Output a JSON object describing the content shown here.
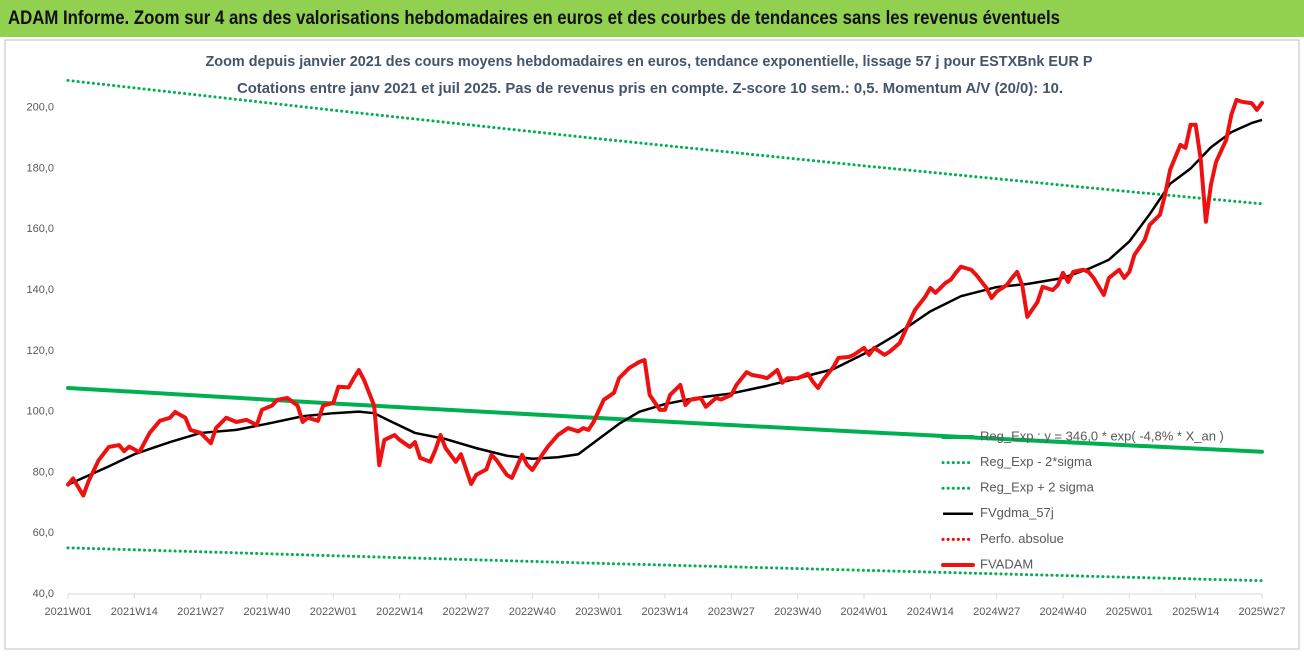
{
  "chart_data": {
    "type": "line",
    "header": "ADAM Informe. Zoom sur 4 ans des valorisations hebdomadaires en euros et des courbes de tendances sans les revenus éventuels",
    "title": "Zoom depuis janvier 2021 des cours moyens hebdomadaires en euros, tendance exponentielle, lissage 57 j pour ESTXBnk EUR P",
    "subtitle": "Cotations entre janv 2021 et juil 2025. Pas de revenus pris en compte. Z-score 10 sem.: 0,5. Momentum A/V (20/0): 10.",
    "xlim": [
      0,
      234
    ],
    "xticks": [
      {
        "value": 0,
        "label": "2021W01"
      },
      {
        "value": 13,
        "label": "2021W14"
      },
      {
        "value": 26,
        "label": "2021W27"
      },
      {
        "value": 39,
        "label": "2021W40"
      },
      {
        "value": 52,
        "label": "2022W01"
      },
      {
        "value": 65,
        "label": "2022W14"
      },
      {
        "value": 78,
        "label": "2022W27"
      },
      {
        "value": 91,
        "label": "2022W40"
      },
      {
        "value": 104,
        "label": "2023W01"
      },
      {
        "value": 117,
        "label": "2023W14"
      },
      {
        "value": 130,
        "label": "2023W27"
      },
      {
        "value": 143,
        "label": "2023W40"
      },
      {
        "value": 156,
        "label": "2024W01"
      },
      {
        "value": 169,
        "label": "2024W14"
      },
      {
        "value": 182,
        "label": "2024W27"
      },
      {
        "value": 195,
        "label": "2024W40"
      },
      {
        "value": 208,
        "label": "2025W01"
      },
      {
        "value": 221,
        "label": "2025W14"
      },
      {
        "value": 234,
        "label": "2025W27"
      }
    ],
    "ylim": [
      40,
      220
    ],
    "yticks": [
      {
        "value": 40,
        "label": "40,0"
      },
      {
        "value": 60,
        "label": "60,0"
      },
      {
        "value": 80,
        "label": "80,0"
      },
      {
        "value": 100,
        "label": "100,0"
      },
      {
        "value": 120,
        "label": "120,0"
      },
      {
        "value": 140,
        "label": "140,0"
      },
      {
        "value": 160,
        "label": "160,0"
      },
      {
        "value": 180,
        "label": "180,0"
      },
      {
        "value": 200,
        "label": "200,0"
      }
    ],
    "grid": false,
    "series": [
      {
        "name": "Reg_Exp : y = 346,0 * exp( -4,8% * X_an )",
        "color": "#00b050",
        "style": "thick",
        "x": [
          0,
          52,
          104,
          156,
          208,
          234
        ],
        "values": [
          107.8,
          102.7,
          97.9,
          93.3,
          88.9,
          86.8
        ]
      },
      {
        "name": "Reg_Exp - 2*sigma",
        "color": "#00b050",
        "style": "dotted",
        "x": [
          0,
          52,
          104,
          156,
          208,
          234
        ],
        "values": [
          55.2,
          52.6,
          50.1,
          47.8,
          45.5,
          44.4
        ]
      },
      {
        "name": "Reg_Exp + 2 sigma",
        "color": "#00b050",
        "style": "dotted",
        "x": [
          0,
          52,
          104,
          156,
          208,
          234
        ],
        "values": [
          209,
          199.2,
          189.8,
          180.9,
          172.4,
          168.4
        ]
      },
      {
        "name": "FVgdma_57j",
        "color": "#000000",
        "style": "solid",
        "x": [
          0,
          8,
          13,
          20,
          26,
          33,
          39,
          46,
          52,
          57,
          60,
          63,
          68,
          74,
          80,
          86,
          91,
          96,
          100,
          104,
          108,
          112,
          117,
          123,
          130,
          137,
          143,
          150,
          156,
          162,
          169,
          175,
          182,
          188,
          195,
          200,
          204,
          208,
          212,
          216,
          220,
          224,
          228,
          232,
          234
        ],
        "values": [
          76,
          82,
          86,
          90,
          93,
          94,
          96,
          98.5,
          99.5,
          100,
          99.5,
          97,
          93,
          91,
          88,
          85.5,
          84.5,
          85,
          86,
          91,
          96,
          100,
          102.5,
          104.5,
          106,
          108.5,
          111,
          114,
          119,
          125,
          133,
          138,
          141,
          142,
          144,
          147,
          150,
          156,
          165,
          175,
          180,
          187,
          192,
          195,
          196
        ]
      },
      {
        "name": "Perfo. absolue",
        "color": "#ff0000",
        "style": "dotted",
        "x": [],
        "values": []
      },
      {
        "name": "FVADAM",
        "color": "#ee1111",
        "style": "thick",
        "x": [
          0,
          1,
          3,
          4,
          6,
          8,
          10,
          11,
          12,
          14,
          16,
          18,
          20,
          21,
          23,
          24,
          26,
          28,
          29,
          31,
          33,
          35,
          37,
          38,
          40,
          41,
          43,
          45,
          46,
          47,
          49,
          50,
          52,
          53,
          55,
          56,
          57,
          58,
          60,
          61,
          62,
          64,
          65,
          67,
          68,
          69,
          71,
          72,
          73,
          74,
          76,
          77,
          79,
          80,
          82,
          83,
          84,
          86,
          87,
          89,
          90,
          91,
          93,
          94,
          96,
          98,
          100,
          101,
          102,
          103,
          105,
          107,
          108,
          110,
          112,
          113,
          114,
          116,
          117,
          118,
          120,
          121,
          122,
          124,
          125,
          127,
          128,
          130,
          131,
          133,
          134,
          136,
          137,
          139,
          140,
          141,
          143,
          145,
          146,
          147,
          148,
          150,
          151,
          153,
          154,
          156,
          157,
          158,
          160,
          161,
          163,
          164,
          166,
          168,
          169,
          170,
          172,
          173,
          174,
          175,
          177,
          178,
          180,
          181,
          182,
          184,
          185,
          186,
          187,
          188,
          190,
          191,
          193,
          194,
          195,
          196,
          197,
          199,
          200,
          201,
          203,
          204,
          206,
          207,
          208,
          209,
          211,
          212,
          214,
          215,
          216,
          218,
          219,
          220,
          221,
          222,
          223,
          224,
          225,
          227,
          228,
          229,
          230,
          232,
          233,
          234
        ],
        "values": [
          76,
          78,
          72.4,
          77,
          84,
          88.4,
          89,
          87,
          88.5,
          86.7,
          93,
          97,
          98,
          99.9,
          98,
          94,
          93,
          89.6,
          94.6,
          98,
          96.6,
          97.3,
          95.6,
          100.6,
          102,
          103.9,
          104.5,
          102,
          96.6,
          98,
          97,
          102,
          102.9,
          108.2,
          108,
          111,
          113.7,
          110.5,
          102,
          82.4,
          90.7,
          92.3,
          90.7,
          88.4,
          90,
          84.8,
          83.5,
          87.4,
          92.3,
          88,
          83.5,
          86,
          76.2,
          79.2,
          81,
          85.8,
          84,
          79.2,
          78.2,
          85.8,
          82.5,
          80.8,
          86,
          88.4,
          92.3,
          94.6,
          93.5,
          94.6,
          94,
          96.6,
          103.9,
          106.2,
          111,
          114.4,
          116.4,
          117,
          105.5,
          100.6,
          100.6,
          105.5,
          108.8,
          102.2,
          103.9,
          104.5,
          101.6,
          104.5,
          104,
          105.5,
          108.8,
          113,
          112.1,
          111.5,
          111,
          113.7,
          109.5,
          111,
          111,
          112.5,
          109.8,
          107.8,
          110.5,
          114.7,
          117.7,
          118,
          118.7,
          121,
          118.7,
          121,
          118.7,
          119.7,
          122.6,
          126.3,
          133.5,
          137.8,
          140.7,
          139.1,
          142.4,
          143.4,
          145.7,
          147.7,
          146.7,
          145,
          140.7,
          137.4,
          139.5,
          141.7,
          144,
          146,
          141.7,
          131.2,
          136.1,
          141.1,
          140,
          141.7,
          145.7,
          142.7,
          146,
          146.7,
          146,
          144,
          138.4,
          144,
          146.7,
          144,
          146,
          151.6,
          156.5,
          161.5,
          164.8,
          171.4,
          179.6,
          187.8,
          186.8,
          194.4,
          194.4,
          182.9,
          162.5,
          174.7,
          182.2,
          189.5,
          197.7,
          202.6,
          202,
          201.5,
          199.3,
          201.6
        ]
      }
    ]
  }
}
